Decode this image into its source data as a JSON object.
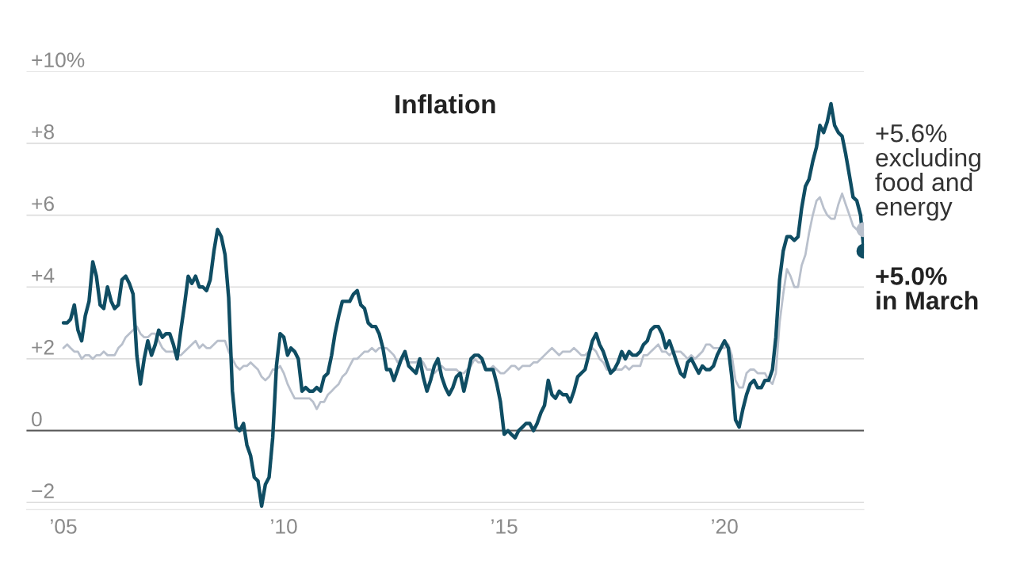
{
  "chart_data": {
    "type": "line",
    "title": "Inflation",
    "x": [
      "2005-01",
      "2005-02",
      "2005-03",
      "2005-04",
      "2005-05",
      "2005-06",
      "2005-07",
      "2005-08",
      "2005-09",
      "2005-10",
      "2005-11",
      "2005-12",
      "2006-01",
      "2006-02",
      "2006-03",
      "2006-04",
      "2006-05",
      "2006-06",
      "2006-07",
      "2006-08",
      "2006-09",
      "2006-10",
      "2006-11",
      "2006-12",
      "2007-01",
      "2007-02",
      "2007-03",
      "2007-04",
      "2007-05",
      "2007-06",
      "2007-07",
      "2007-08",
      "2007-09",
      "2007-10",
      "2007-11",
      "2007-12",
      "2008-01",
      "2008-02",
      "2008-03",
      "2008-04",
      "2008-05",
      "2008-06",
      "2008-07",
      "2008-08",
      "2008-09",
      "2008-10",
      "2008-11",
      "2008-12",
      "2009-01",
      "2009-02",
      "2009-03",
      "2009-04",
      "2009-05",
      "2009-06",
      "2009-07",
      "2009-08",
      "2009-09",
      "2009-10",
      "2009-11",
      "2009-12",
      "2010-01",
      "2010-02",
      "2010-03",
      "2010-04",
      "2010-05",
      "2010-06",
      "2010-07",
      "2010-08",
      "2010-09",
      "2010-10",
      "2010-11",
      "2010-12",
      "2011-01",
      "2011-02",
      "2011-03",
      "2011-04",
      "2011-05",
      "2011-06",
      "2011-07",
      "2011-08",
      "2011-09",
      "2011-10",
      "2011-11",
      "2011-12",
      "2012-01",
      "2012-02",
      "2012-03",
      "2012-04",
      "2012-05",
      "2012-06",
      "2012-07",
      "2012-08",
      "2012-09",
      "2012-10",
      "2012-11",
      "2012-12",
      "2013-01",
      "2013-02",
      "2013-03",
      "2013-04",
      "2013-05",
      "2013-06",
      "2013-07",
      "2013-08",
      "2013-09",
      "2013-10",
      "2013-11",
      "2013-12",
      "2014-01",
      "2014-02",
      "2014-03",
      "2014-04",
      "2014-05",
      "2014-06",
      "2014-07",
      "2014-08",
      "2014-09",
      "2014-10",
      "2014-11",
      "2014-12",
      "2015-01",
      "2015-02",
      "2015-03",
      "2015-04",
      "2015-05",
      "2015-06",
      "2015-07",
      "2015-08",
      "2015-09",
      "2015-10",
      "2015-11",
      "2015-12",
      "2016-01",
      "2016-02",
      "2016-03",
      "2016-04",
      "2016-05",
      "2016-06",
      "2016-07",
      "2016-08",
      "2016-09",
      "2016-10",
      "2016-11",
      "2016-12",
      "2017-01",
      "2017-02",
      "2017-03",
      "2017-04",
      "2017-05",
      "2017-06",
      "2017-07",
      "2017-08",
      "2017-09",
      "2017-10",
      "2017-11",
      "2017-12",
      "2018-01",
      "2018-02",
      "2018-03",
      "2018-04",
      "2018-05",
      "2018-06",
      "2018-07",
      "2018-08",
      "2018-09",
      "2018-10",
      "2018-11",
      "2018-12",
      "2019-01",
      "2019-02",
      "2019-03",
      "2019-04",
      "2019-05",
      "2019-06",
      "2019-07",
      "2019-08",
      "2019-09",
      "2019-10",
      "2019-11",
      "2019-12",
      "2020-01",
      "2020-02",
      "2020-03",
      "2020-04",
      "2020-05",
      "2020-06",
      "2020-07",
      "2020-08",
      "2020-09",
      "2020-10",
      "2020-11",
      "2020-12",
      "2021-01",
      "2021-02",
      "2021-03",
      "2021-04",
      "2021-05",
      "2021-06",
      "2021-07",
      "2021-08",
      "2021-09",
      "2021-10",
      "2021-11",
      "2021-12",
      "2022-01",
      "2022-02",
      "2022-03",
      "2022-04",
      "2022-05",
      "2022-06",
      "2022-07",
      "2022-08",
      "2022-09",
      "2022-10",
      "2022-11",
      "2022-12",
      "2023-01",
      "2023-02",
      "2023-03"
    ],
    "series": [
      {
        "color": "#b9c0cc",
        "values": [
          2.3,
          2.4,
          2.3,
          2.2,
          2.2,
          2.0,
          2.1,
          2.1,
          2.0,
          2.1,
          2.1,
          2.2,
          2.1,
          2.1,
          2.1,
          2.3,
          2.4,
          2.6,
          2.7,
          2.8,
          2.9,
          2.7,
          2.6,
          2.6,
          2.7,
          2.7,
          2.5,
          2.3,
          2.2,
          2.2,
          2.2,
          2.1,
          2.1,
          2.2,
          2.3,
          2.4,
          2.5,
          2.3,
          2.4,
          2.3,
          2.3,
          2.4,
          2.5,
          2.5,
          2.5,
          2.2,
          2.0,
          1.8,
          1.7,
          1.8,
          1.8,
          1.9,
          1.8,
          1.7,
          1.5,
          1.4,
          1.5,
          1.7,
          1.7,
          1.8,
          1.6,
          1.3,
          1.1,
          0.9,
          0.9,
          0.9,
          0.9,
          0.9,
          0.8,
          0.6,
          0.8,
          0.8,
          1.0,
          1.1,
          1.2,
          1.3,
          1.5,
          1.6,
          1.8,
          2.0,
          2.0,
          2.1,
          2.2,
          2.2,
          2.3,
          2.2,
          2.3,
          2.3,
          2.3,
          2.2,
          2.1,
          1.9,
          2.0,
          2.0,
          1.9,
          1.9,
          1.9,
          2.0,
          1.9,
          1.7,
          1.7,
          1.6,
          1.7,
          1.8,
          1.7,
          1.7,
          1.7,
          1.7,
          1.6,
          1.6,
          1.7,
          1.8,
          2.0,
          1.9,
          1.9,
          1.7,
          1.7,
          1.8,
          1.7,
          1.6,
          1.6,
          1.7,
          1.8,
          1.8,
          1.7,
          1.8,
          1.8,
          1.8,
          1.9,
          1.9,
          2.0,
          2.1,
          2.2,
          2.3,
          2.2,
          2.1,
          2.2,
          2.2,
          2.2,
          2.3,
          2.2,
          2.1,
          2.1,
          2.2,
          2.3,
          2.2,
          2.0,
          1.9,
          1.7,
          1.7,
          1.7,
          1.7,
          1.7,
          1.8,
          1.7,
          1.8,
          1.8,
          1.8,
          2.1,
          2.1,
          2.2,
          2.3,
          2.4,
          2.2,
          2.2,
          2.1,
          2.2,
          2.2,
          2.2,
          2.1,
          2.0,
          2.1,
          2.0,
          2.1,
          2.2,
          2.4,
          2.4,
          2.3,
          2.3,
          2.3,
          2.3,
          2.4,
          2.1,
          1.4,
          1.2,
          1.2,
          1.6,
          1.7,
          1.7,
          1.6,
          1.6,
          1.6,
          1.4,
          1.3,
          1.6,
          3.0,
          3.8,
          4.5,
          4.3,
          4.0,
          4.0,
          4.6,
          4.9,
          5.5,
          6.0,
          6.4,
          6.5,
          6.2,
          6.0,
          5.9,
          5.9,
          6.3,
          6.6,
          6.3,
          6.0,
          5.7,
          5.6,
          5.5,
          5.6
        ]
      },
      {
        "color": "#0f4d63",
        "values": [
          3.0,
          3.0,
          3.1,
          3.5,
          2.8,
          2.5,
          3.2,
          3.6,
          4.7,
          4.3,
          3.5,
          3.4,
          4.0,
          3.6,
          3.4,
          3.5,
          4.2,
          4.3,
          4.1,
          3.8,
          2.1,
          1.3,
          2.0,
          2.5,
          2.1,
          2.4,
          2.8,
          2.6,
          2.7,
          2.7,
          2.4,
          2.0,
          2.8,
          3.5,
          4.3,
          4.1,
          4.3,
          4.0,
          4.0,
          3.9,
          4.2,
          5.0,
          5.6,
          5.4,
          4.9,
          3.7,
          1.1,
          0.1,
          0.0,
          0.2,
          -0.4,
          -0.7,
          -1.3,
          -1.4,
          -2.1,
          -1.5,
          -1.3,
          -0.2,
          1.8,
          2.7,
          2.6,
          2.1,
          2.3,
          2.2,
          2.0,
          1.1,
          1.2,
          1.1,
          1.1,
          1.2,
          1.1,
          1.5,
          1.6,
          2.1,
          2.7,
          3.2,
          3.6,
          3.6,
          3.6,
          3.8,
          3.9,
          3.5,
          3.4,
          3.0,
          2.9,
          2.9,
          2.7,
          2.3,
          1.7,
          1.7,
          1.4,
          1.7,
          2.0,
          2.2,
          1.8,
          1.7,
          1.6,
          2.0,
          1.5,
          1.1,
          1.4,
          1.8,
          2.0,
          1.5,
          1.2,
          1.0,
          1.2,
          1.5,
          1.6,
          1.1,
          1.5,
          2.0,
          2.1,
          2.1,
          2.0,
          1.7,
          1.7,
          1.7,
          1.3,
          0.8,
          -0.1,
          0.0,
          -0.1,
          -0.2,
          0.0,
          0.1,
          0.2,
          0.2,
          0.0,
          0.2,
          0.5,
          0.7,
          1.4,
          1.0,
          0.9,
          1.1,
          1.0,
          1.0,
          0.8,
          1.1,
          1.5,
          1.6,
          1.7,
          2.1,
          2.5,
          2.7,
          2.4,
          2.2,
          1.9,
          1.6,
          1.7,
          1.9,
          2.2,
          2.0,
          2.2,
          2.1,
          2.1,
          2.2,
          2.4,
          2.5,
          2.8,
          2.9,
          2.9,
          2.7,
          2.3,
          2.5,
          2.2,
          1.9,
          1.6,
          1.5,
          1.9,
          2.0,
          1.8,
          1.6,
          1.8,
          1.7,
          1.7,
          1.8,
          2.1,
          2.3,
          2.5,
          2.3,
          1.5,
          0.3,
          0.1,
          0.6,
          1.0,
          1.3,
          1.4,
          1.2,
          1.2,
          1.4,
          1.4,
          1.7,
          2.6,
          4.2,
          5.0,
          5.4,
          5.4,
          5.3,
          5.4,
          6.2,
          6.8,
          7.0,
          7.5,
          7.9,
          8.5,
          8.3,
          8.6,
          9.1,
          8.5,
          8.3,
          8.2,
          7.7,
          7.1,
          6.5,
          6.4,
          6.0,
          5.0
        ]
      },
      {
        "type": "scatter",
        "x": [
          "2023-03"
        ],
        "color": "#b9c0cc",
        "marker": "circle",
        "values": [
          5.6
        ]
      },
      {
        "type": "scatter",
        "x": [
          "2023-03"
        ],
        "color": "#0f4d63",
        "marker": "circle",
        "values": [
          5.0
        ]
      }
    ],
    "xlim": [
      "2004-03",
      "2023-03"
    ],
    "xticks": [
      {
        "value": "2005-01",
        "label": "’05"
      },
      {
        "value": "2010-01",
        "label": "’10"
      },
      {
        "value": "2015-01",
        "label": "’15"
      },
      {
        "value": "2020-01",
        "label": "’20"
      }
    ],
    "ylim": [
      -2.2,
      10
    ],
    "yticks": [
      {
        "value": -2,
        "label": "−2"
      },
      0,
      {
        "value": 2,
        "label": "+2"
      },
      {
        "value": 4,
        "label": "+4"
      },
      {
        "value": 6,
        "label": "+6"
      },
      {
        "value": 8,
        "label": "+8"
      },
      {
        "value": 10,
        "label": "+10%"
      }
    ],
    "grid": "y",
    "ref_lines": [
      {
        "axis": "y",
        "value": 0,
        "color": "#555555"
      }
    ],
    "annotations": [
      {
        "text": "+5.6%\nexcluding\nfood and\nenergy",
        "x": "2023-03",
        "y": 5.6
      },
      {
        "text": "+5.0%\nin March",
        "x": "2023-03",
        "y": 5.0
      }
    ]
  }
}
